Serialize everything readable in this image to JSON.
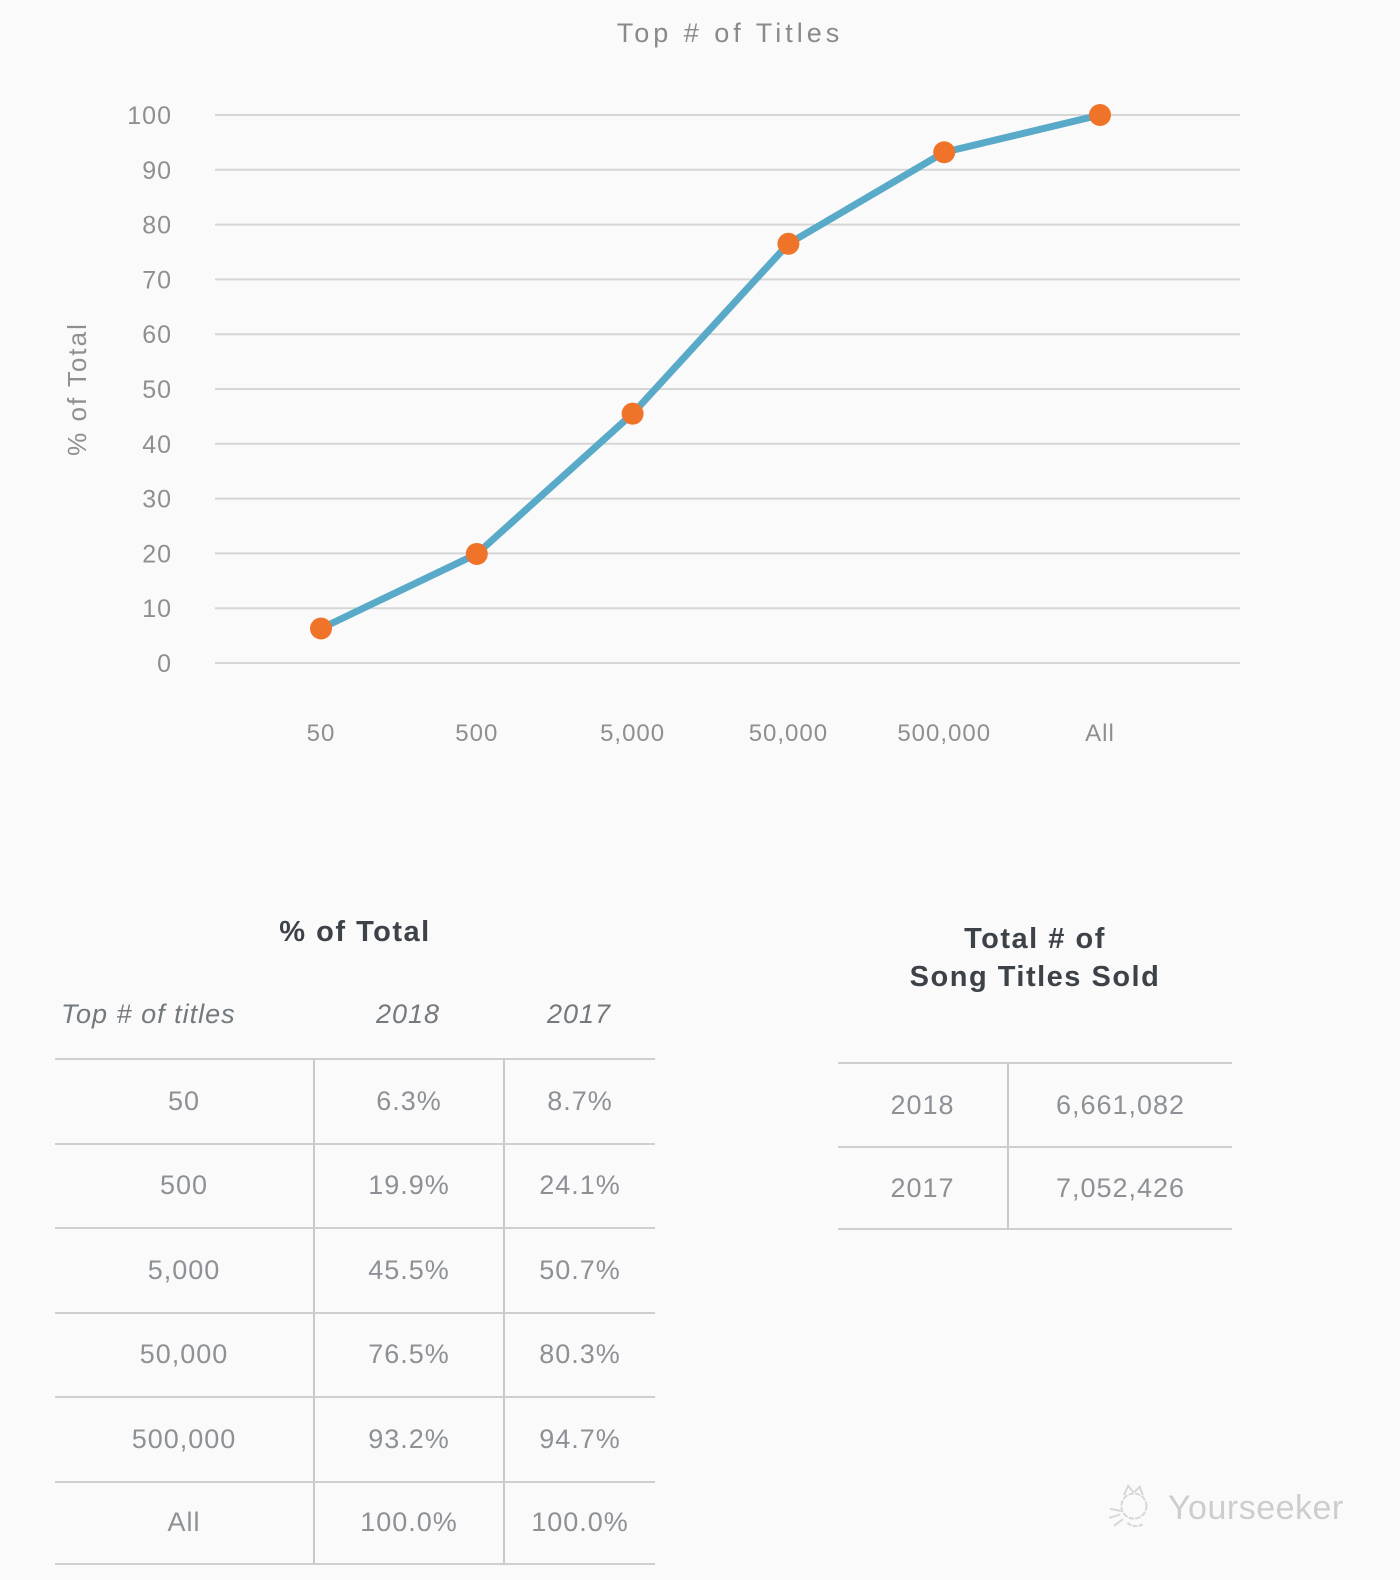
{
  "chart_data": [
    {
      "type": "line",
      "title": "Top # of Titles",
      "ylabel": "% of Total",
      "xlabel": "",
      "categories": [
        "50",
        "500",
        "5,000",
        "50,000",
        "500,000",
        "All"
      ],
      "series": [
        {
          "name": "2018",
          "values": [
            6.3,
            19.9,
            45.5,
            76.5,
            93.2,
            100.0
          ]
        }
      ],
      "ylim": [
        0,
        100
      ],
      "yticks": [
        0,
        10,
        20,
        30,
        40,
        50,
        60,
        70,
        80,
        90,
        100
      ],
      "grid": true,
      "legend_position": "none",
      "line_color": "#58aac8",
      "marker_color": "#ef7429",
      "gridline_color": "#d6d6d6"
    },
    {
      "type": "table",
      "title": "% of Total",
      "columns": [
        "Top # of titles",
        "2018",
        "2017"
      ],
      "rows": [
        [
          "50",
          "6.3%",
          "8.7%"
        ],
        [
          "500",
          "19.9%",
          "24.1%"
        ],
        [
          "5,000",
          "45.5%",
          "50.7%"
        ],
        [
          "50,000",
          "76.5%",
          "80.3%"
        ],
        [
          "500,000",
          "93.2%",
          "94.7%"
        ],
        [
          "All",
          "100.0%",
          "100.0%"
        ]
      ]
    },
    {
      "type": "table",
      "title": "Total # of Song Titles Sold",
      "title_lines": [
        "Total # of",
        "Song Titles Sold"
      ],
      "rows": [
        [
          "2018",
          "6,661,082"
        ],
        [
          "2017",
          "7,052,426"
        ]
      ]
    }
  ],
  "watermark": {
    "label": "Yourseeker",
    "icon": "cat-doodle-icon"
  }
}
